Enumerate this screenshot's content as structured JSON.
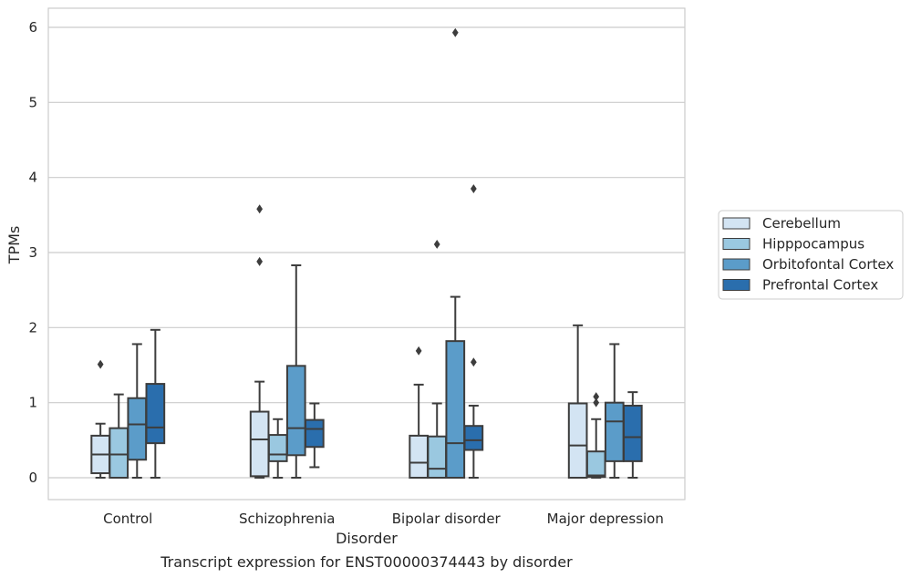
{
  "caption": "Transcript expression for ENST00000374443 by disorder",
  "chart_data": {
    "type": "box",
    "xlabel": "Disorder",
    "ylabel": "TPMs",
    "ylim": [
      -0.28,
      6.25
    ],
    "yticks": [
      0,
      1,
      2,
      3,
      4,
      5,
      6
    ],
    "grid": "horizontal",
    "legend_position": "right",
    "categories": [
      "Control",
      "Schizophrenia",
      "Bipolar disorder",
      "Major depression"
    ],
    "series": [
      {
        "name": "Cerebellum",
        "color": "#d3e4f3",
        "boxes": [
          {
            "whisker_low": 0.0,
            "q1": 0.06,
            "median": 0.31,
            "q3": 0.56,
            "whisker_high": 0.72,
            "outliers": [
              1.51
            ]
          },
          {
            "whisker_low": 0.0,
            "q1": 0.02,
            "median": 0.51,
            "q3": 0.88,
            "whisker_high": 1.28,
            "outliers": [
              2.88,
              3.58
            ]
          },
          {
            "whisker_low": 0.0,
            "q1": 0.0,
            "median": 0.2,
            "q3": 0.56,
            "whisker_high": 1.24,
            "outliers": [
              1.69
            ]
          },
          {
            "whisker_low": 0.0,
            "q1": 0.0,
            "median": 0.43,
            "q3": 0.99,
            "whisker_high": 2.03,
            "outliers": []
          }
        ]
      },
      {
        "name": "Hipppocampus",
        "color": "#9ac8e0",
        "boxes": [
          {
            "whisker_low": 0.0,
            "q1": 0.0,
            "median": 0.31,
            "q3": 0.66,
            "whisker_high": 1.11,
            "outliers": []
          },
          {
            "whisker_low": 0.0,
            "q1": 0.22,
            "median": 0.31,
            "q3": 0.57,
            "whisker_high": 0.78,
            "outliers": []
          },
          {
            "whisker_low": 0.0,
            "q1": 0.0,
            "median": 0.12,
            "q3": 0.55,
            "whisker_high": 0.99,
            "outliers": [
              3.11
            ]
          },
          {
            "whisker_low": 0.0,
            "q1": 0.01,
            "median": 0.03,
            "q3": 0.35,
            "whisker_high": 0.78,
            "outliers": [
              1.0,
              1.08
            ]
          }
        ]
      },
      {
        "name": "Orbitofontal Cortex",
        "color": "#5b9cc9",
        "boxes": [
          {
            "whisker_low": 0.0,
            "q1": 0.24,
            "median": 0.71,
            "q3": 1.06,
            "whisker_high": 1.78,
            "outliers": []
          },
          {
            "whisker_low": 0.0,
            "q1": 0.3,
            "median": 0.66,
            "q3": 1.49,
            "whisker_high": 2.83,
            "outliers": []
          },
          {
            "whisker_low": 0.0,
            "q1": 0.0,
            "median": 0.46,
            "q3": 1.82,
            "whisker_high": 2.41,
            "outliers": [
              5.93
            ]
          },
          {
            "whisker_low": 0.0,
            "q1": 0.22,
            "median": 0.75,
            "q3": 1.0,
            "whisker_high": 1.78,
            "outliers": []
          }
        ]
      },
      {
        "name": "Prefrontal Cortex",
        "color": "#2a6ead",
        "boxes": [
          {
            "whisker_low": 0.0,
            "q1": 0.46,
            "median": 0.67,
            "q3": 1.25,
            "whisker_high": 1.97,
            "outliers": []
          },
          {
            "whisker_low": 0.14,
            "q1": 0.41,
            "median": 0.65,
            "q3": 0.77,
            "whisker_high": 0.99,
            "outliers": []
          },
          {
            "whisker_low": 0.0,
            "q1": 0.37,
            "median": 0.5,
            "q3": 0.69,
            "whisker_high": 0.96,
            "outliers": [
              1.54,
              3.85
            ]
          },
          {
            "whisker_low": 0.0,
            "q1": 0.22,
            "median": 0.54,
            "q3": 0.96,
            "whisker_high": 1.14,
            "outliers": []
          }
        ]
      }
    ]
  }
}
